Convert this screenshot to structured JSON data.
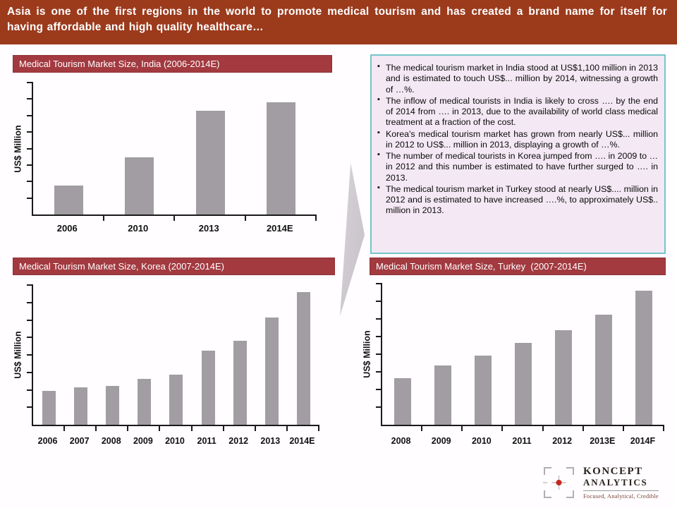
{
  "slide": {
    "header": {
      "text": "Asia is one of the first regions in the world to promote medical tourism and has created a brand name for itself for having affordable and high quality healthcare…",
      "bg_color": "#9C3A1C"
    },
    "bullet_box": {
      "bg_color": "#F3E8F3",
      "border_color": "#74C6CB",
      "bullets": [
        "The medical tourism market in India stood at US$1,100 million in 2013 and is estimated to touch US$... million by 2014, witnessing a growth of …%.",
        "The inflow of medical tourists in India is likely to cross …. by the end of 2014 from …. in 2013, due to the availability of world class medical treatment at a fraction of the cost.",
        "Korea's medical tourism market has grown from nearly US$... million in 2012 to US$... million in 2013, displaying a growth of …%.",
        "The number of medical tourists in Korea jumped from …. in 2009 to … in 2012 and this number is estimated to have further surged to …. in 2013.",
        "The medical tourism market in Turkey stood at nearly US$.... million in 2012 and is estimated to have increased ….%, to approximately US$.. million in 2013."
      ]
    },
    "logo": {
      "line1": "KONCEPT",
      "line2": "ANALYTICS",
      "tagline": "Focused, Analytical, Credible"
    },
    "colors": {
      "title_banner": "#A23A40",
      "bar": "#A29CA3",
      "arrow": "#CFC9D0"
    }
  },
  "chart_data": [
    {
      "type": "bar",
      "title": "Medical Tourism Market Size, India (2006-2014E)",
      "xlabel": "",
      "ylabel": "US$ Million",
      "categories": [
        "2006",
        "2010",
        "2013",
        "2014E"
      ],
      "values": [
        310,
        610,
        1100,
        1190
      ],
      "ylim": [
        0,
        1400
      ],
      "grid": false,
      "legend": false,
      "note": "Y-axis shows tick marks only (no numeric labels); values estimated from bar heights, anchored to US$1,100 million in 2013 stated in slide text."
    },
    {
      "type": "bar",
      "title": "Medical Tourism Market Size, Korea (2007-2014E)",
      "xlabel": "",
      "ylabel": "US$ Million",
      "categories": [
        "2006",
        "2007",
        "2008",
        "2009",
        "2010",
        "2011",
        "2012",
        "2013",
        "2014E"
      ],
      "values": [
        24,
        27,
        28,
        33,
        36,
        53,
        60,
        77,
        95
      ],
      "ylim": [
        0,
        100
      ],
      "grid": false,
      "legend": false,
      "note": "Y-axis unlabeled; values are relative bar heights in % of axis maximum."
    },
    {
      "type": "bar",
      "title": "Medical Tourism Market Size, Turkey  (2007-2014E)",
      "xlabel": "",
      "ylabel": "US$ Million",
      "categories": [
        "2008",
        "2009",
        "2010",
        "2011",
        "2012",
        "2013E",
        "2014F"
      ],
      "values": [
        33,
        42,
        49,
        58,
        67,
        78,
        95
      ],
      "ylim": [
        0,
        100
      ],
      "grid": false,
      "legend": false,
      "note": "Y-axis unlabeled; values are relative bar heights in % of axis maximum."
    }
  ]
}
